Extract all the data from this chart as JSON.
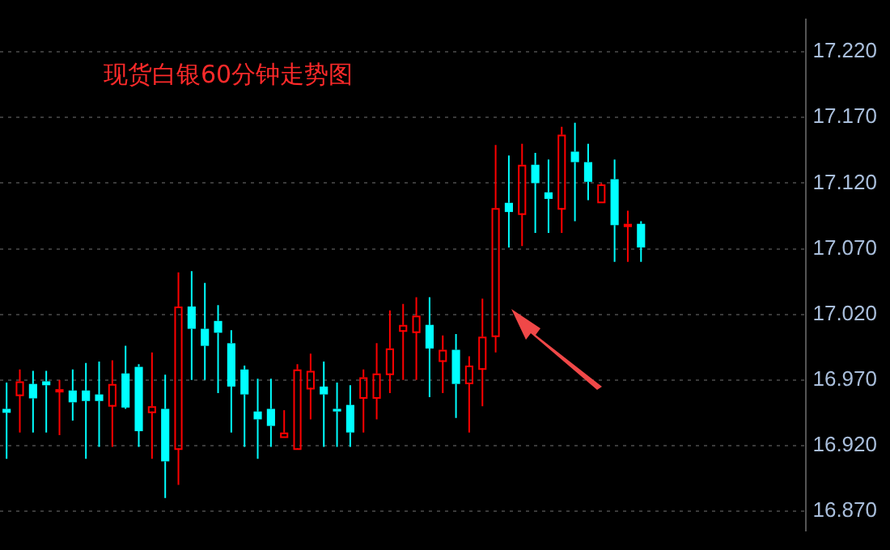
{
  "chart_data": {
    "type": "candlestick",
    "title": "现货白银60分钟走势图",
    "categories": [
      null,
      null,
      null,
      null,
      null,
      null,
      null,
      null,
      null,
      null,
      null,
      null,
      null,
      null,
      null,
      null,
      null,
      null,
      null,
      null,
      null,
      null,
      null,
      null,
      null,
      null,
      null,
      null,
      null,
      null,
      null,
      null,
      null,
      null,
      null,
      null,
      null,
      null,
      null,
      null,
      null,
      null,
      null,
      null,
      null,
      null,
      null,
      null,
      null,
      null,
      null,
      null,
      null,
      null,
      null,
      null,
      null,
      null,
      null,
      null,
      null
    ],
    "ohlc": [
      [
        16.948,
        16.968,
        16.91,
        16.945
      ],
      [
        16.959,
        16.978,
        16.93,
        16.969
      ],
      [
        16.967,
        16.977,
        16.93,
        16.956
      ],
      [
        16.969,
        16.977,
        16.93,
        16.966
      ],
      [
        16.962,
        16.97,
        16.928,
        16.963
      ],
      [
        16.962,
        16.978,
        16.939,
        16.953
      ],
      [
        16.962,
        16.983,
        16.91,
        16.954
      ],
      [
        16.959,
        16.984,
        16.919,
        16.954
      ],
      [
        16.951,
        16.985,
        16.919,
        16.967
      ],
      [
        16.975,
        16.996,
        16.948,
        16.949
      ],
      [
        16.98,
        16.982,
        16.919,
        16.931
      ],
      [
        16.946,
        16.991,
        16.91,
        16.95
      ],
      [
        16.948,
        16.974,
        16.88,
        16.908
      ],
      [
        16.918,
        17.052,
        16.89,
        17.026
      ],
      [
        17.026,
        17.053,
        16.97,
        17.009
      ],
      [
        17.009,
        17.044,
        16.97,
        16.996
      ],
      [
        17.015,
        17.027,
        16.96,
        17.006
      ],
      [
        16.998,
        17.008,
        16.93,
        16.965
      ],
      [
        16.978,
        16.981,
        16.919,
        16.959
      ],
      [
        16.946,
        16.971,
        16.91,
        16.94
      ],
      [
        16.948,
        16.971,
        16.919,
        16.935
      ],
      [
        16.927,
        16.947,
        16.927,
        16.93
      ],
      [
        16.918,
        16.982,
        16.917,
        16.978
      ],
      [
        16.964,
        16.99,
        16.94,
        16.977
      ],
      [
        16.965,
        16.984,
        16.919,
        16.959
      ],
      [
        16.948,
        16.968,
        16.919,
        16.946
      ],
      [
        16.951,
        16.966,
        16.919,
        16.93
      ],
      [
        16.957,
        16.978,
        16.93,
        16.972
      ],
      [
        16.957,
        16.998,
        16.94,
        16.975
      ],
      [
        16.975,
        17.023,
        16.96,
        16.994
      ],
      [
        17.008,
        17.028,
        16.97,
        17.012
      ],
      [
        17.007,
        17.033,
        16.97,
        17.019
      ],
      [
        17.012,
        17.033,
        16.957,
        16.994
      ],
      [
        16.985,
        17.004,
        16.96,
        16.993
      ],
      [
        16.993,
        17.005,
        16.941,
        16.967
      ],
      [
        16.968,
        16.988,
        16.93,
        16.981
      ],
      [
        16.979,
        17.032,
        16.95,
        17.003
      ],
      [
        17.004,
        17.149,
        16.991,
        17.101
      ],
      [
        17.105,
        17.141,
        17.071,
        17.098
      ],
      [
        17.097,
        17.15,
        17.072,
        17.134
      ],
      [
        17.134,
        17.143,
        17.082,
        17.12
      ],
      [
        17.113,
        17.138,
        17.082,
        17.108
      ],
      [
        17.101,
        17.163,
        17.082,
        17.157
      ],
      [
        17.144,
        17.166,
        17.091,
        17.136
      ],
      [
        17.136,
        17.15,
        17.107,
        17.121
      ],
      [
        17.106,
        17.12,
        17.106,
        17.119
      ],
      [
        17.123,
        17.138,
        17.06,
        17.088
      ],
      [
        17.088,
        17.099,
        17.06,
        17.089
      ],
      [
        17.089,
        17.091,
        17.06,
        17.071
      ],
      null,
      null,
      null,
      null,
      null,
      null,
      null,
      null,
      null,
      null,
      null,
      null
    ],
    "colors": [
      "#00ffff",
      "#ff0000",
      "#00ffff",
      "#00ffff",
      "#ff0000",
      "#00ffff",
      "#00ffff",
      "#00ffff",
      "#ff0000",
      "#00ffff",
      "#00ffff",
      "#ff0000",
      "#00ffff",
      "#ff0000",
      "#00ffff",
      "#00ffff",
      "#00ffff",
      "#00ffff",
      "#00ffff",
      "#00ffff",
      "#00ffff",
      "#ff0000",
      "#ff0000",
      "#ff0000",
      "#00ffff",
      "#00ffff",
      "#00ffff",
      "#ff0000",
      "#ff0000",
      "#ff0000",
      "#ff0000",
      "#ff0000",
      "#00ffff",
      "#ff0000",
      "#00ffff",
      "#ff0000",
      "#ff0000",
      "#ff0000",
      "#00ffff",
      "#ff0000",
      "#00ffff",
      "#00ffff",
      "#ff0000",
      "#00ffff",
      "#00ffff",
      "#ff0000",
      "#00ffff",
      "#ff0000",
      "#00ffff",
      null,
      null,
      null,
      null,
      null,
      null,
      null,
      null,
      null,
      null,
      null,
      null
    ],
    "ylim": [
      16.855,
      17.245
    ],
    "yticks": [
      {
        "value": 16.87,
        "label": "16.870"
      },
      {
        "value": 16.92,
        "label": "16.920"
      },
      {
        "value": 16.97,
        "label": "16.970"
      },
      {
        "value": 17.02,
        "label": "17.020"
      },
      {
        "value": 17.07,
        "label": "17.070"
      },
      {
        "value": 17.12,
        "label": "17.120"
      },
      {
        "value": 17.17,
        "label": "17.170"
      },
      {
        "value": 17.22,
        "label": "17.220"
      }
    ],
    "grid": "y",
    "tick_labels": "y"
  }
}
